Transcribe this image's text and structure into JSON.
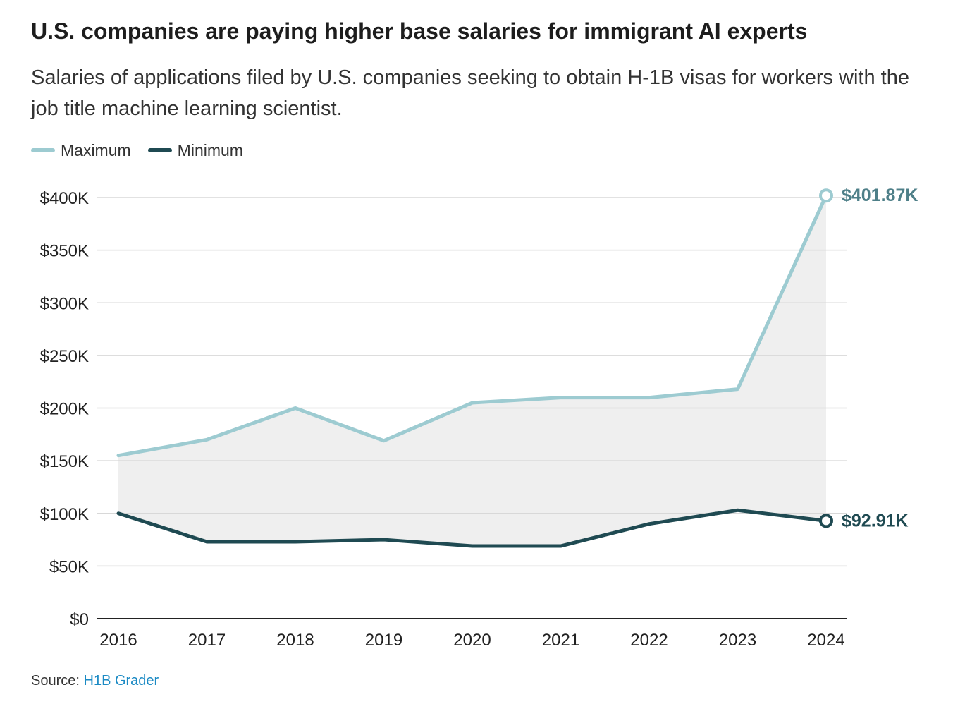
{
  "title": "U.S. companies are paying higher base salaries for immigrant AI experts",
  "subtitle": "Salaries of applications filed by U.S. companies seeking to obtain H-1B visas for workers with the job title machine learning scientist.",
  "source": {
    "label": "Source:",
    "link_text": "H1B Grader"
  },
  "colors": {
    "maximum": "#9dcbd1",
    "minimum": "#1f4a52",
    "band": "#efefef",
    "grid": "#d8d8d8",
    "axis": "#222222",
    "max_label": "#4e7f88",
    "link": "#1b8ac4"
  },
  "chart_data": {
    "type": "line",
    "x": [
      "2016",
      "2017",
      "2018",
      "2019",
      "2020",
      "2021",
      "2022",
      "2023",
      "2024"
    ],
    "series": [
      {
        "name": "Maximum",
        "values": [
          155000,
          170000,
          200000,
          169000,
          205000,
          210000,
          210000,
          218000,
          401870
        ]
      },
      {
        "name": "Minimum",
        "values": [
          100000,
          73000,
          73000,
          75000,
          69000,
          69000,
          90000,
          103000,
          92910
        ]
      }
    ],
    "ylim": [
      0,
      400000
    ],
    "yticks": [
      {
        "value": 0,
        "label": "$0"
      },
      {
        "value": 50000,
        "label": "$50K"
      },
      {
        "value": 100000,
        "label": "$100K"
      },
      {
        "value": 150000,
        "label": "$150K"
      },
      {
        "value": 200000,
        "label": "$200K"
      },
      {
        "value": 250000,
        "label": "$250K"
      },
      {
        "value": 300000,
        "label": "$300K"
      },
      {
        "value": 350000,
        "label": "$350K"
      },
      {
        "value": 400000,
        "label": "$400K"
      }
    ],
    "end_labels": [
      "$401.87K",
      "$92.91K"
    ],
    "shaded_band_between_series": true,
    "grid": "horizontal",
    "legend_position": "top-left",
    "xlabel": "",
    "ylabel": ""
  }
}
